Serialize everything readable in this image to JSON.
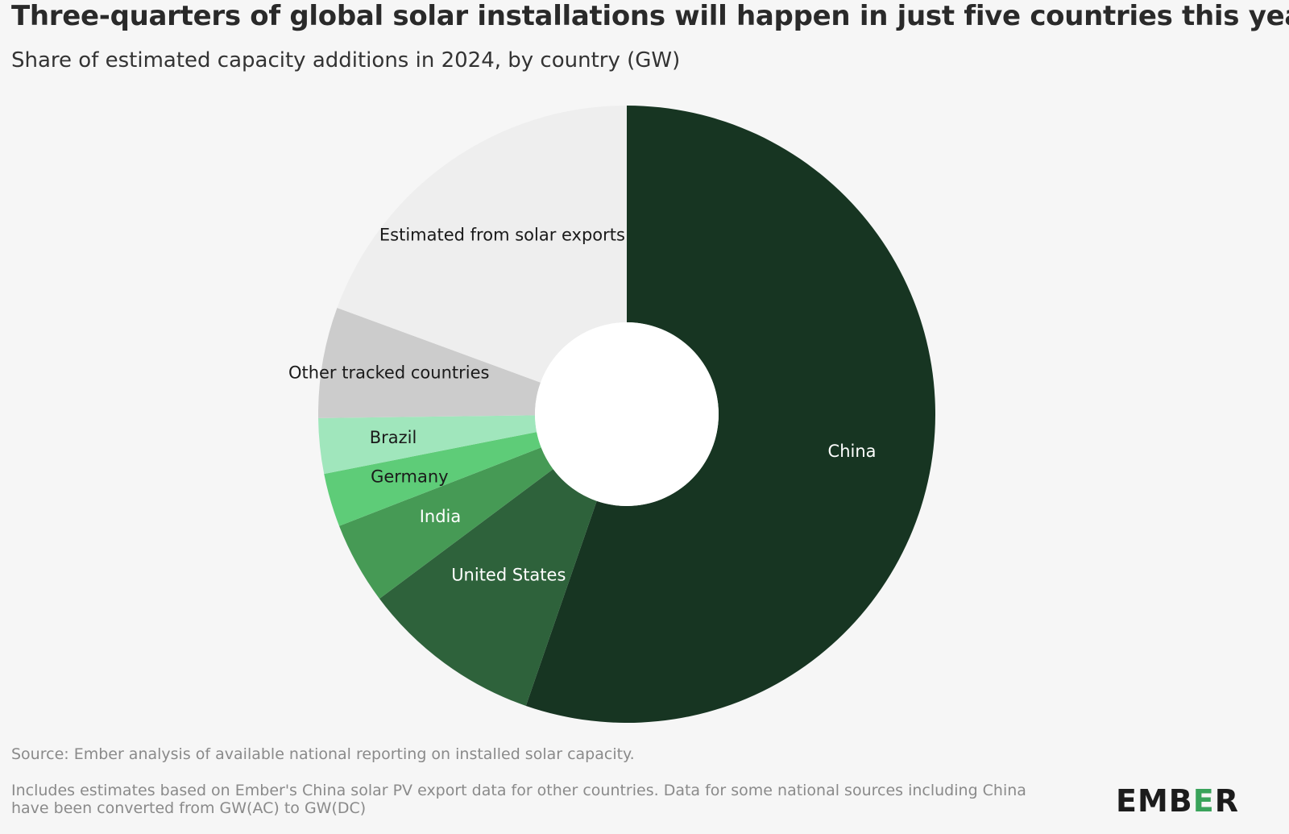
{
  "title": "Three-quarters of global solar installations will happen in just five countries this year",
  "subtitle": "Share of estimated capacity additions in 2024, by country (GW)",
  "source": "Source: Ember analysis of available national reporting on installed solar capacity.",
  "footnote": "Includes estimates based on Ember's China solar PV export data for other countries. Data for some national sources including China have been converted from GW(AC) to GW(DC)",
  "logo": {
    "text": "EMBER",
    "accent_letter": "E",
    "accent_color": "#3aa35b"
  },
  "chart_data": {
    "type": "pie",
    "donut": true,
    "unit": "GW",
    "title": "Three-quarters of global solar installations will happen in just five countries this year",
    "subtitle": "Share of estimated capacity additions in 2024, by country (GW)",
    "slices": [
      {
        "label": "China",
        "share": 0.553,
        "color": "#173522",
        "label_color": "#ffffff"
      },
      {
        "label": "United States",
        "share": 0.095,
        "color": "#2e623b",
        "label_color": "#ffffff"
      },
      {
        "label": "India",
        "share": 0.043,
        "color": "#469a55",
        "label_color": "#ffffff"
      },
      {
        "label": "Germany",
        "share": 0.028,
        "color": "#5ecc78",
        "label_color": "#1a1a1a"
      },
      {
        "label": "Brazil",
        "share": 0.029,
        "color": "#a0e6bc",
        "label_color": "#1a1a1a"
      },
      {
        "label": "Other tracked countries",
        "share": 0.058,
        "color": "#cccccc",
        "label_color": "#1a1a1a"
      },
      {
        "label": "Estimated from solar exports",
        "share": 0.194,
        "color": "#eeeeee",
        "label_color": "#1a1a1a"
      }
    ],
    "legend": "none"
  }
}
